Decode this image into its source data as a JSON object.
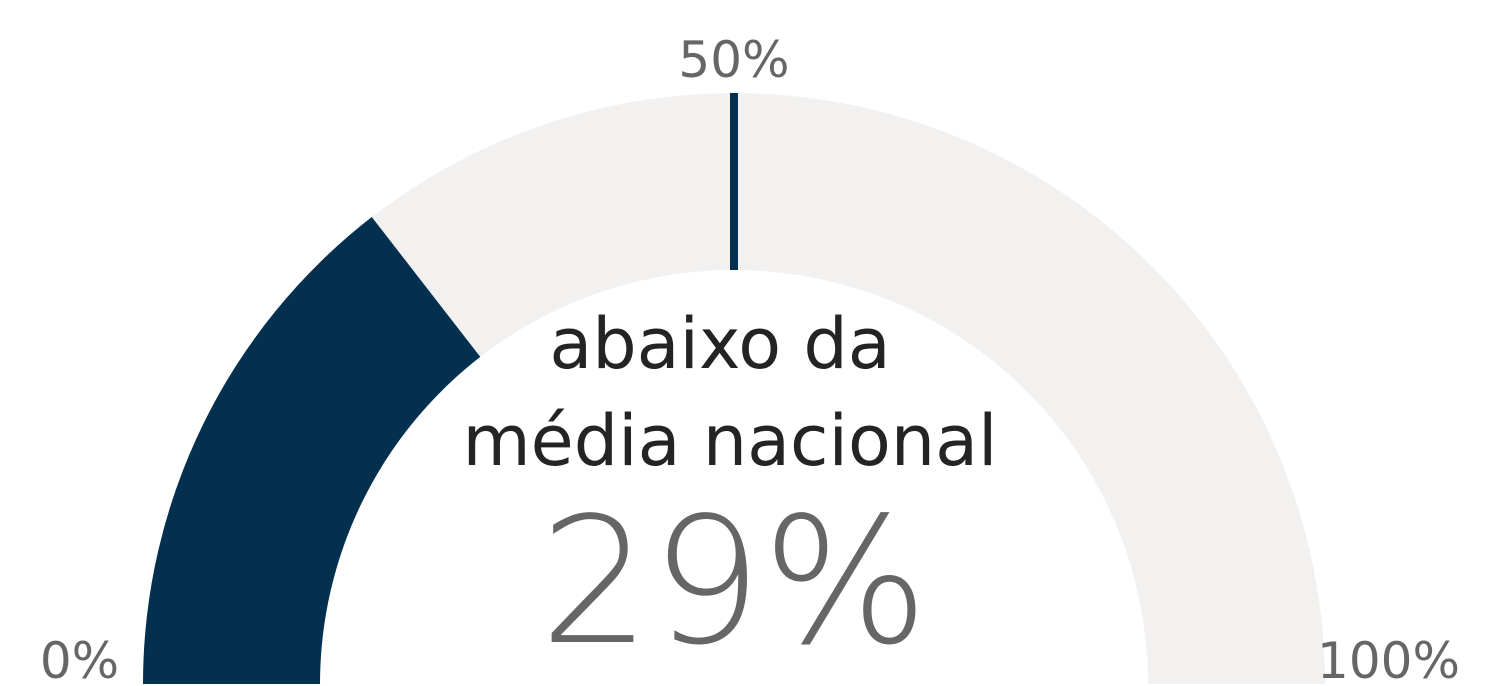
{
  "chart_data": {
    "type": "gauge",
    "label_lines": [
      "abaixo da",
      "média nacional"
    ],
    "value": 29,
    "value_label": "29%",
    "range": [
      0,
      100
    ],
    "ticks": [
      {
        "value": 0,
        "label": "0%"
      },
      {
        "value": 100,
        "label": "100%"
      }
    ],
    "target": {
      "value": 50,
      "label": "50%"
    },
    "color": "#03304f",
    "track_color": "#f2f1f0",
    "target_color": "#03304f"
  }
}
